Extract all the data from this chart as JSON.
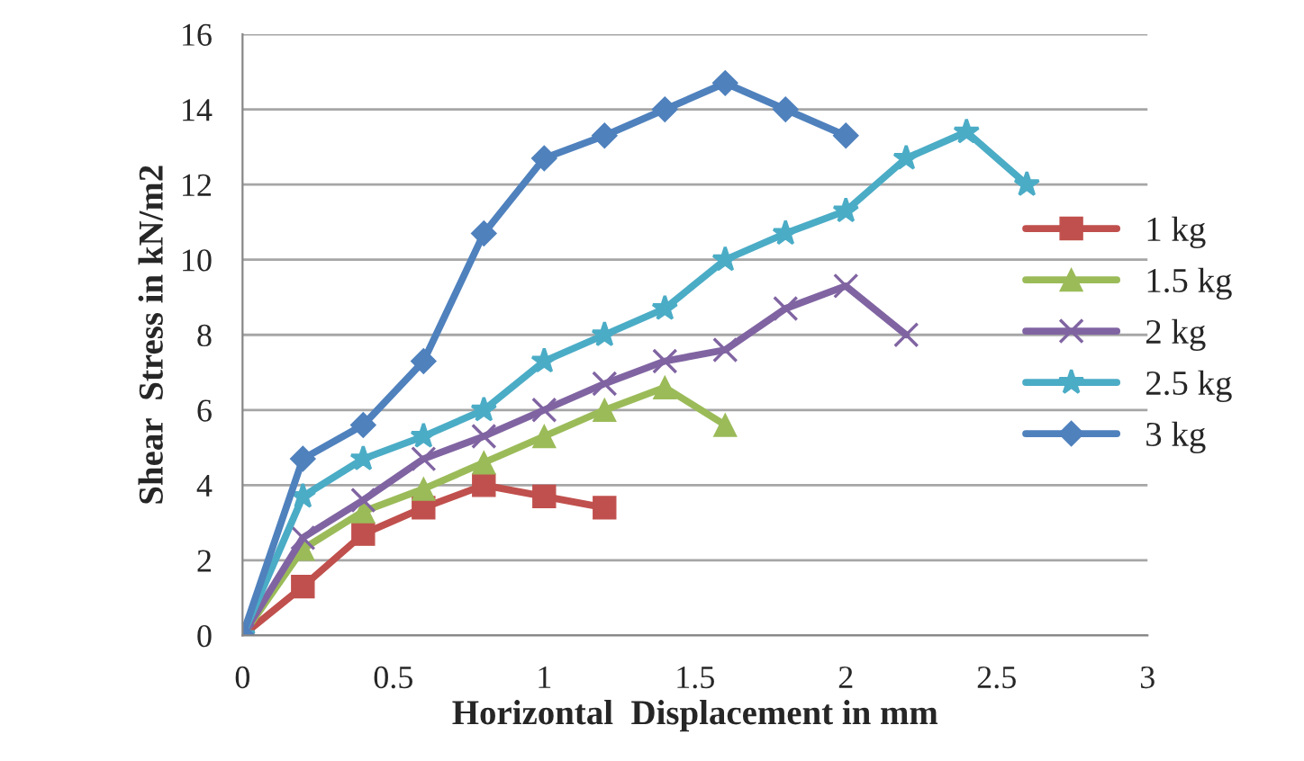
{
  "chart_data": {
    "type": "line",
    "xlabel": "Horizontal  Displacement in mm",
    "ylabel": "Shear  Stress in kN/m2",
    "xlim": [
      0,
      3
    ],
    "xticks": [
      0,
      0.5,
      1,
      1.5,
      2,
      2.5,
      3
    ],
    "ylim": [
      0,
      16
    ],
    "yticks": [
      0,
      2,
      4,
      6,
      8,
      10,
      12,
      14,
      16
    ],
    "grid": "y",
    "legend": "right",
    "line_style": "solid",
    "series": [
      {
        "name": "1 kg",
        "color": "#c0504d",
        "marker": "square",
        "x": [
          0,
          0.2,
          0.4,
          0.6,
          0.8,
          1.0,
          1.2
        ],
        "values": [
          0,
          1.3,
          2.7,
          3.4,
          4.0,
          3.7,
          3.4
        ]
      },
      {
        "name": "1.5 kg",
        "color": "#9bbb59",
        "marker": "triangle",
        "x": [
          0,
          0.2,
          0.4,
          0.6,
          0.8,
          1.0,
          1.2,
          1.4,
          1.6
        ],
        "values": [
          0,
          2.3,
          3.3,
          3.9,
          4.6,
          5.3,
          6.0,
          6.6,
          5.6
        ]
      },
      {
        "name": "2 kg",
        "color": "#8064a2",
        "marker": "cross",
        "x": [
          0,
          0.2,
          0.4,
          0.6,
          0.8,
          1.0,
          1.2,
          1.4,
          1.6,
          1.8,
          2.0,
          2.2
        ],
        "values": [
          0,
          2.6,
          3.6,
          4.7,
          5.3,
          6.0,
          6.7,
          7.3,
          7.6,
          8.7,
          9.3,
          8.0
        ]
      },
      {
        "name": "2.5 kg",
        "color": "#4bacc6",
        "marker": "star",
        "x": [
          0,
          0.2,
          0.4,
          0.6,
          0.8,
          1.0,
          1.2,
          1.4,
          1.6,
          1.8,
          2.0,
          2.2,
          2.4,
          2.6
        ],
        "values": [
          0,
          3.7,
          4.7,
          5.3,
          6.0,
          7.3,
          8.0,
          8.7,
          10.0,
          10.7,
          11.3,
          12.7,
          13.4,
          12.0
        ]
      },
      {
        "name": "3 kg",
        "color": "#4f81bd",
        "marker": "diamond",
        "x": [
          0,
          0.2,
          0.4,
          0.6,
          0.8,
          1.0,
          1.2,
          1.4,
          1.6,
          1.8,
          2.0
        ],
        "values": [
          0,
          4.7,
          5.6,
          7.3,
          10.7,
          12.7,
          13.3,
          14.0,
          14.7,
          14.0,
          13.3
        ]
      }
    ]
  }
}
